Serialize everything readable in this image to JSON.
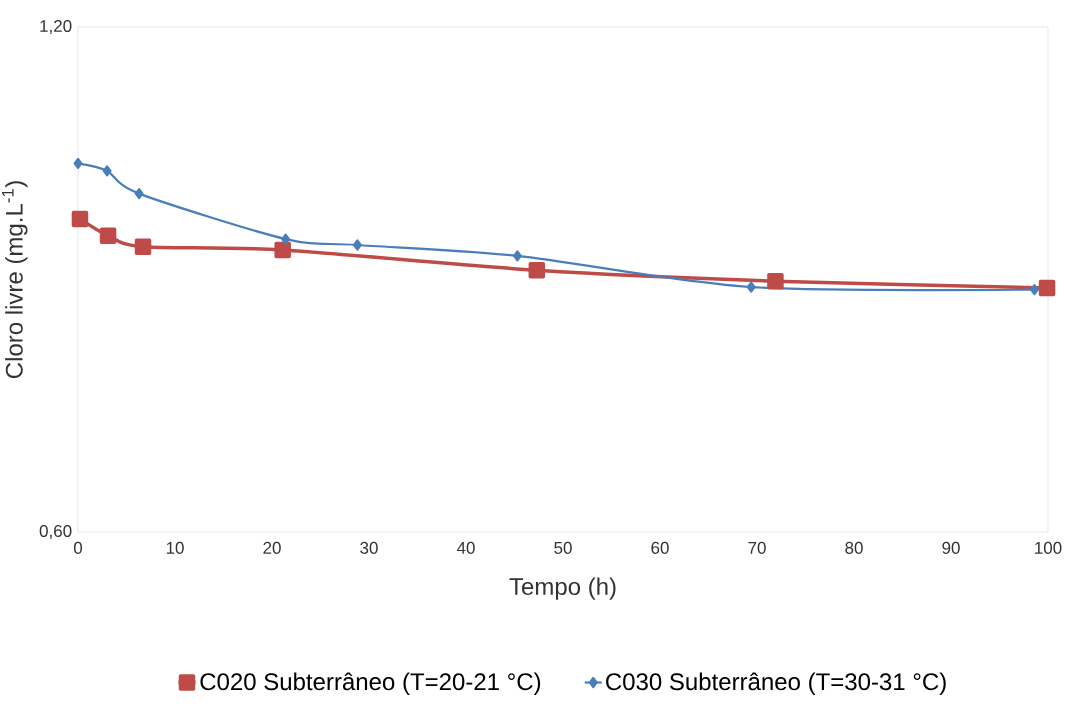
{
  "chart_data": {
    "type": "line",
    "xlabel": "Tempo (h)",
    "ylabel": "Cloro livre (mg.L$^{-1}$)",
    "xlim": [
      0,
      100
    ],
    "xticks": [
      0,
      10,
      20,
      30,
      40,
      50,
      60,
      70,
      80,
      90,
      100
    ],
    "ylim": [
      0.6,
      1.2
    ],
    "yticks": [
      {
        "value": 0.6,
        "label": "0,60"
      },
      {
        "value": 1.2,
        "label": "1,20"
      }
    ],
    "grid": false,
    "legend": "bottom",
    "line_style": "solid",
    "series": [
      {
        "name": "C020 Subterrâneo (T=20-21 °C)",
        "color": "#be4b48",
        "marker": "square",
        "x": [
          0.2,
          3.1,
          6.7,
          21.1,
          47.3,
          71.9,
          99.9
        ],
        "values": [
          0.972,
          0.952,
          0.939,
          0.935,
          0.911,
          0.898,
          0.89
        ]
      },
      {
        "name": "C030 Subterrâneo (T=30-31 °C)",
        "color": "#4a7ebb",
        "marker": "diamond",
        "x": [
          0,
          3.0,
          6.3,
          21.4,
          28.8,
          45.3,
          69.4,
          98.6
        ],
        "values": [
          1.038,
          1.029,
          1.002,
          0.948,
          0.941,
          0.928,
          0.891,
          0.888
        ]
      }
    ]
  }
}
